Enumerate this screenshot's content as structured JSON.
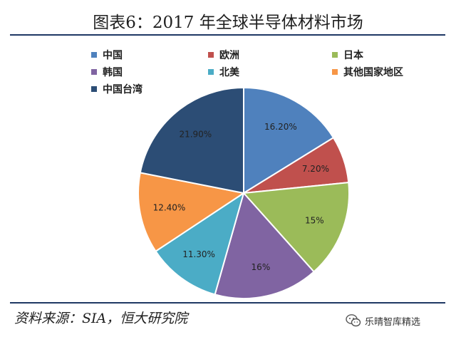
{
  "header": {
    "title": "图表6：2017 年全球半导体材料市场"
  },
  "chart_data": {
    "type": "pie",
    "title": "图表6：2017 年全球半导体材料市场",
    "categories": [
      "中国",
      "欧洲",
      "日本",
      "韩国",
      "北美",
      "其他国家地区",
      "中国台湾"
    ],
    "values": [
      16.2,
      7.2,
      15,
      16,
      11.3,
      12.4,
      21.9
    ],
    "labels": [
      "16.20%",
      "7.20%",
      "15%",
      "16%",
      "11.30%",
      "12.40%",
      "21.90%"
    ],
    "colors": [
      "#4f81bd",
      "#c0504d",
      "#9bbb59",
      "#8064a2",
      "#4bacc6",
      "#f79646",
      "#2c4d75"
    ],
    "legend_position": "top"
  },
  "footer": {
    "source": "资料来源：SIA，恒大研究院",
    "watermark": "乐晴智库精选",
    "watermark_icon": "wechat-icon"
  }
}
